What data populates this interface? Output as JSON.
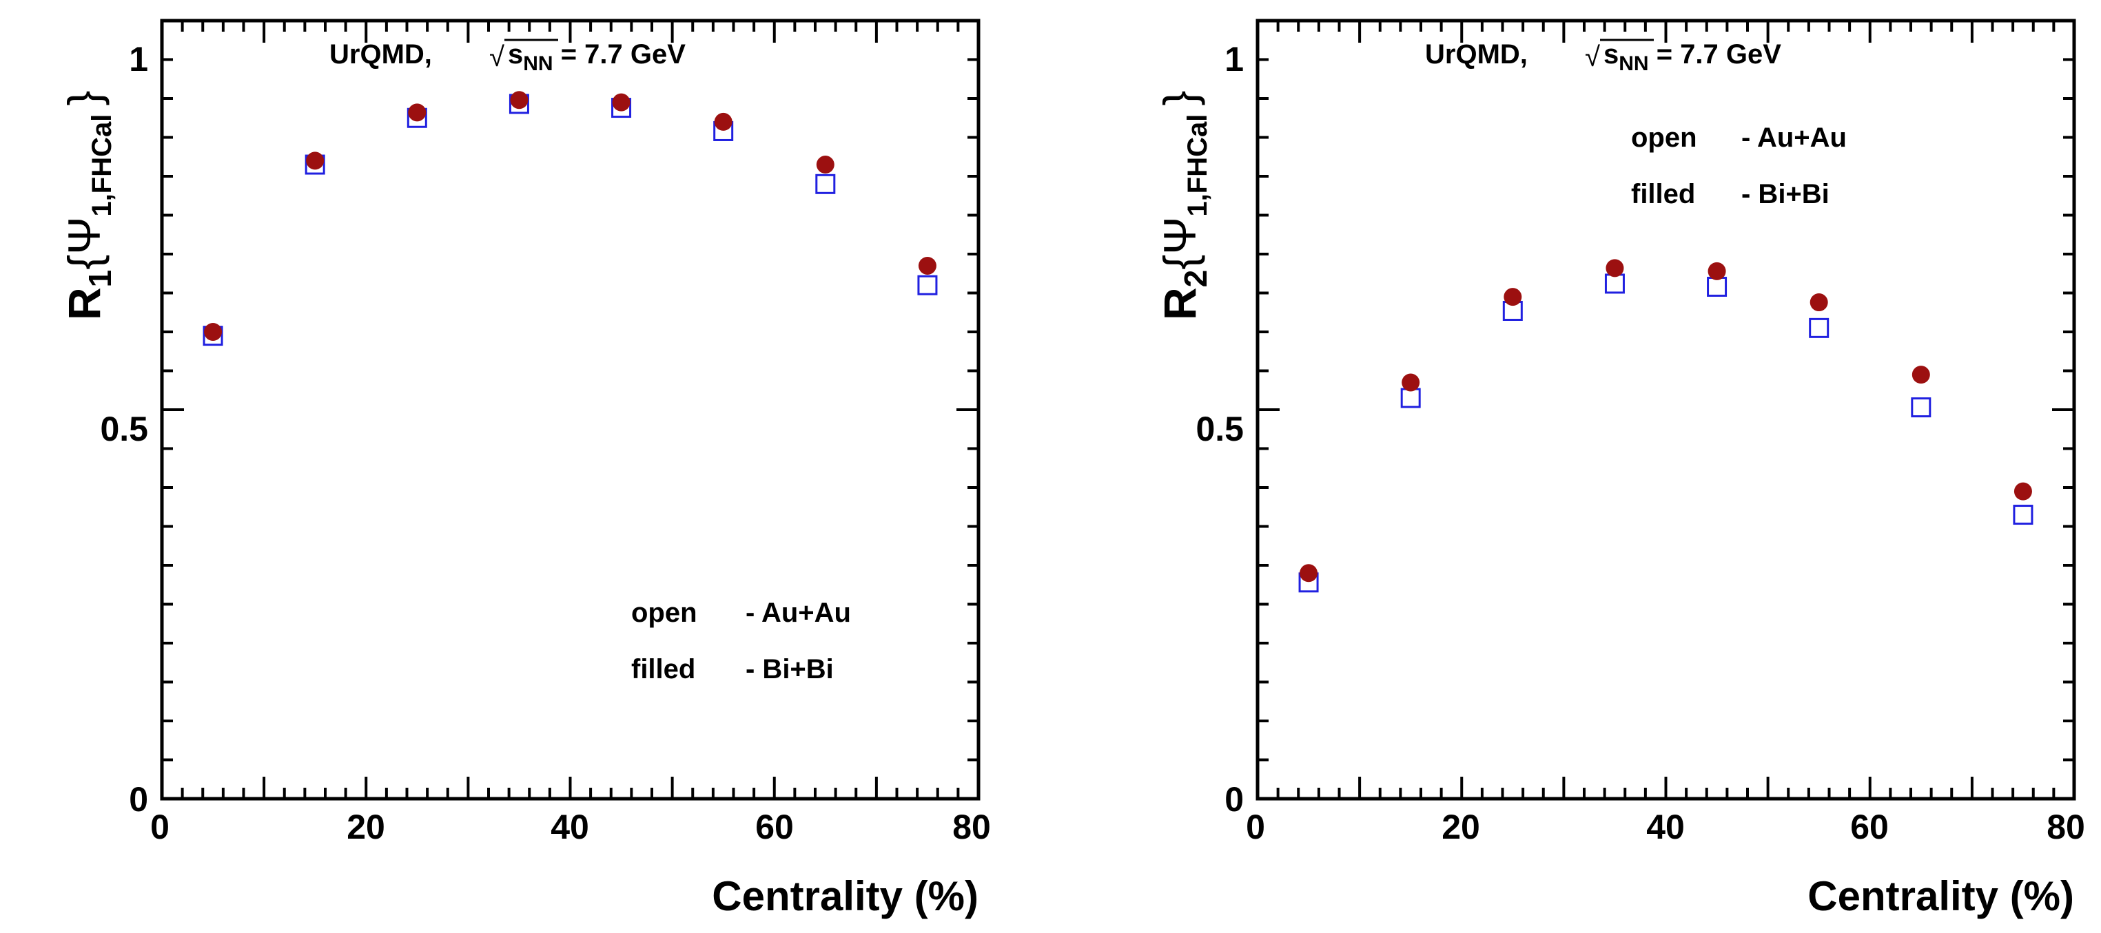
{
  "chart_data": [
    {
      "type": "scatter",
      "title": "",
      "annotation": {
        "model": "UrQMD,",
        "sqrt_symbol": "√",
        "s": "s",
        "nn": "NN",
        "energy": " = 7.7 GeV"
      },
      "ylabel": {
        "main": "R",
        "sub": "1",
        "brace_open": "{Ψ",
        "psi_sub": "1,FHCal",
        "brace_close": "}"
      },
      "xlabel": "Centrality (%)",
      "xlim": [
        0,
        80
      ],
      "ylim": [
        0,
        1
      ],
      "x_ticks": [
        "0",
        "20",
        "40",
        "60",
        "80"
      ],
      "y_ticks": [
        "0",
        "0.5",
        "1"
      ],
      "x": [
        5,
        15,
        25,
        35,
        45,
        55,
        65,
        75
      ],
      "series": [
        {
          "name": "Au+Au",
          "marker": "open-square",
          "color": "#2020e0",
          "values": [
            0.595,
            0.815,
            0.875,
            0.893,
            0.888,
            0.858,
            0.79,
            0.66
          ]
        },
        {
          "name": "Bi+Bi",
          "marker": "filled-circle",
          "color": "#9c1010",
          "values": [
            0.6,
            0.82,
            0.882,
            0.898,
            0.895,
            0.87,
            0.815,
            0.685
          ]
        }
      ],
      "legend": [
        {
          "key": "open",
          "value": "- Au+Au"
        },
        {
          "key": "filled",
          "value": "- Bi+Bi"
        }
      ],
      "legend_position": "bottom-right"
    },
    {
      "type": "scatter",
      "title": "",
      "annotation": {
        "model": "UrQMD,",
        "sqrt_symbol": "√",
        "s": "s",
        "nn": "NN",
        "energy": " = 7.7 GeV"
      },
      "ylabel": {
        "main": "R",
        "sub": "2",
        "brace_open": "{Ψ",
        "psi_sub": "1,FHCal",
        "brace_close": "}"
      },
      "xlabel": "Centrality (%)",
      "xlim": [
        0,
        80
      ],
      "ylim": [
        0,
        1
      ],
      "x_ticks": [
        "0",
        "20",
        "40",
        "60",
        "80"
      ],
      "y_ticks": [
        "0",
        "0.5",
        "1"
      ],
      "x": [
        5,
        15,
        25,
        35,
        45,
        55,
        65,
        75
      ],
      "series": [
        {
          "name": "Au+Au",
          "marker": "open-square",
          "color": "#2020e0",
          "values": [
            0.278,
            0.515,
            0.627,
            0.662,
            0.658,
            0.605,
            0.503,
            0.365
          ]
        },
        {
          "name": "Bi+Bi",
          "marker": "filled-circle",
          "color": "#9c1010",
          "values": [
            0.29,
            0.535,
            0.645,
            0.682,
            0.678,
            0.638,
            0.545,
            0.395
          ]
        }
      ],
      "legend": [
        {
          "key": "open",
          "value": "- Au+Au"
        },
        {
          "key": "filled",
          "value": "- Bi+Bi"
        }
      ],
      "legend_position": "top-right"
    }
  ]
}
